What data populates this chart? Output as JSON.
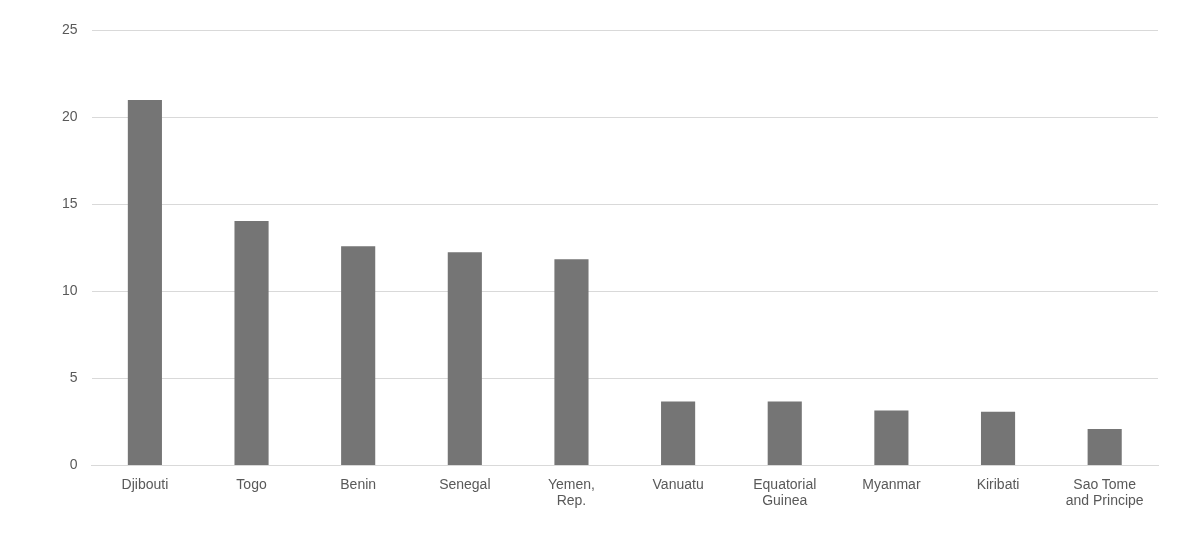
{
  "chart_data": {
    "type": "bar",
    "categories": [
      "Djibouti",
      "Togo",
      "Benin",
      "Senegal",
      "Yemen, Rep.",
      "Vanuatu",
      "Equatorial Guinea",
      "Myanmar",
      "Kiribati",
      "Sao Tome and Principe"
    ],
    "values": [
      21.0,
      14.05,
      12.6,
      12.25,
      11.85,
      3.67,
      3.67,
      3.16,
      3.08,
      2.09
    ],
    "color": "#757575",
    "ylim": [
      0,
      25
    ],
    "yticks": [
      0,
      5,
      10,
      15,
      20,
      25
    ],
    "grid": "y",
    "legend": false
  }
}
